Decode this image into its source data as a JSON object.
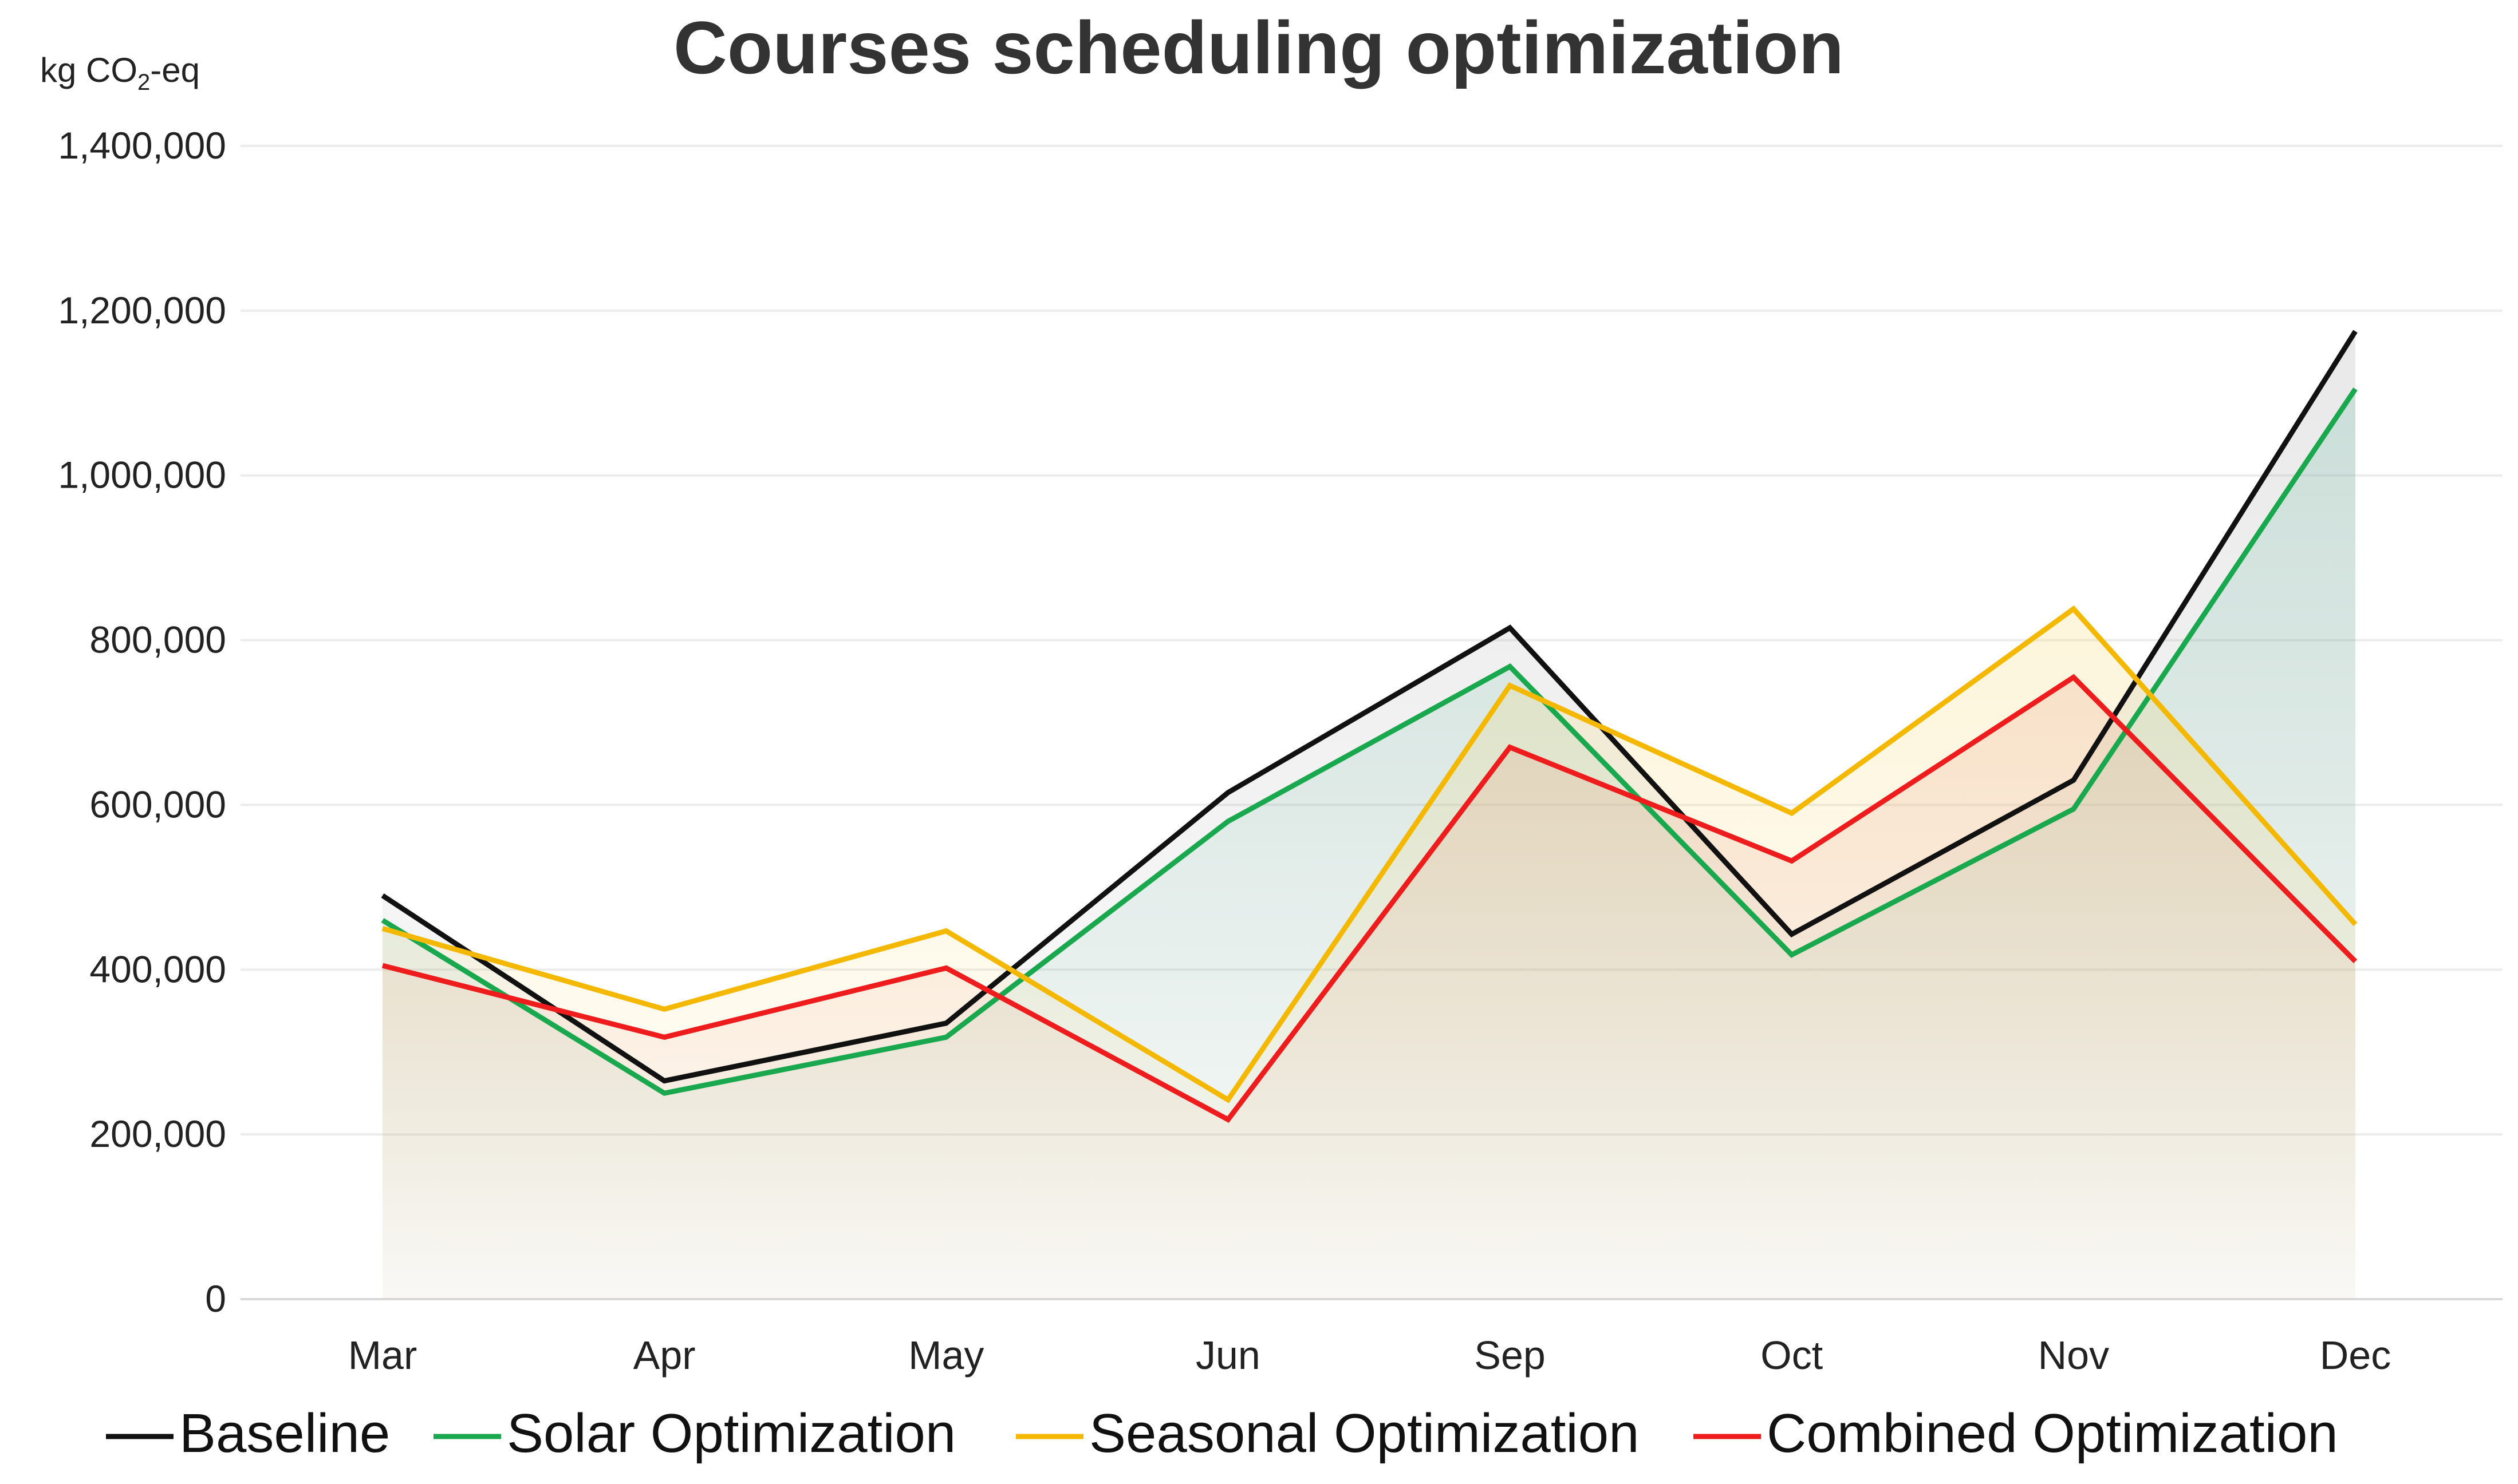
{
  "chart_data": {
    "type": "line",
    "title": "Courses scheduling optimization",
    "ylabel": {
      "prefix": "kg CO",
      "subscript": "2",
      "suffix": "-eq"
    },
    "xlabel": "",
    "categories": [
      "Mar",
      "Apr",
      "May",
      "Jun",
      "Sep",
      "Oct",
      "Nov",
      "Dec"
    ],
    "ylim": [
      0,
      1400000
    ],
    "yticks": [
      0,
      200000,
      400000,
      600000,
      800000,
      1000000,
      1200000,
      1400000
    ],
    "ytick_labels": [
      "0",
      "200,000",
      "400,000",
      "600,000",
      "800,000",
      "1,000,000",
      "1,200,000",
      "1,400,000"
    ],
    "grid": true,
    "legend_position": "bottom",
    "series": [
      {
        "name": "Baseline",
        "color": "#111111",
        "fill_color": "#9a9a9a",
        "values": [
          490000,
          265000,
          335000,
          615000,
          815000,
          443000,
          630000,
          1175000
        ]
      },
      {
        "name": "Solar Optimization",
        "color": "#1aa84f",
        "fill_color": "#5fb59b",
        "values": [
          460000,
          250000,
          318000,
          580000,
          768000,
          418000,
          595000,
          1105000
        ]
      },
      {
        "name": "Seasonal Optimization",
        "color": "#f5b800",
        "fill_color": "#f5d35c",
        "values": [
          450000,
          352000,
          447000,
          242000,
          745000,
          590000,
          838000,
          455000
        ]
      },
      {
        "name": "Combined Optimization",
        "color": "#ee1c1c",
        "fill_color": "#e8957a",
        "values": [
          405000,
          318000,
          402000,
          218000,
          670000,
          532000,
          755000,
          410000
        ]
      }
    ]
  }
}
